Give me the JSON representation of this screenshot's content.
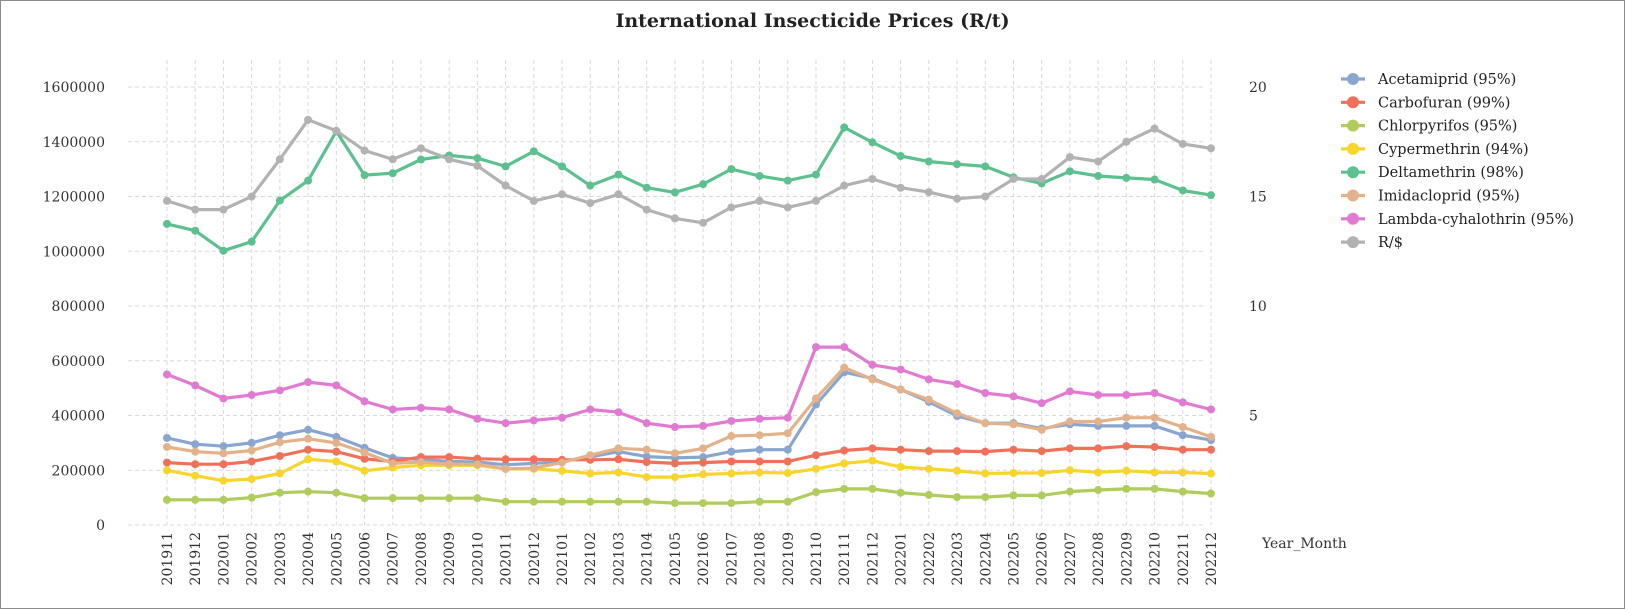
{
  "chart_data": {
    "type": "line",
    "title": "International Insecticide Prices (R/t)",
    "xlabel": "Year_Month",
    "ylabel": "",
    "ylim": [
      0,
      1600000
    ],
    "y2lim": [
      0,
      20
    ],
    "y_ticks": [
      "0",
      "200000",
      "400000",
      "600000",
      "800000",
      "1000000",
      "1200000",
      "1400000",
      "1600000"
    ],
    "y2_ticks": [
      "5",
      "10",
      "15",
      "20"
    ],
    "grid": true,
    "legend_position": "right",
    "categories": [
      "201911",
      "201912",
      "202001",
      "202002",
      "202003",
      "202004",
      "202005",
      "202006",
      "202007",
      "202008",
      "202009",
      "202010",
      "202011",
      "202012",
      "202101",
      "202102",
      "202103",
      "202104",
      "202105",
      "202106",
      "202107",
      "202108",
      "202109",
      "202110",
      "202111",
      "202112",
      "202201",
      "202202",
      "202203",
      "202204",
      "202205",
      "202206",
      "202207",
      "202208",
      "202209",
      "202210",
      "202211",
      "202212"
    ],
    "series": [
      {
        "name": "Acetamiprid (95%)",
        "color": "#8aa6cf",
        "axis": "left",
        "values": [
          318000,
          295000,
          288000,
          300000,
          328000,
          348000,
          322000,
          282000,
          245000,
          240000,
          232000,
          230000,
          220000,
          225000,
          232000,
          248000,
          268000,
          250000,
          245000,
          248000,
          268000,
          275000,
          275000,
          440000,
          558000,
          535000,
          495000,
          450000,
          398000,
          372000,
          372000,
          352000,
          368000,
          362000,
          362000,
          362000,
          328000,
          310000
        ]
      },
      {
        "name": "Carbofuran (99%)",
        "color": "#f0715a",
        "axis": "left",
        "values": [
          228000,
          222000,
          222000,
          232000,
          252000,
          275000,
          268000,
          242000,
          232000,
          248000,
          248000,
          242000,
          240000,
          240000,
          238000,
          238000,
          240000,
          230000,
          225000,
          228000,
          232000,
          232000,
          232000,
          255000,
          272000,
          280000,
          275000,
          270000,
          270000,
          268000,
          275000,
          270000,
          280000,
          280000,
          288000,
          285000,
          275000,
          275000
        ]
      },
      {
        "name": "Chlorpyrifos (95%)",
        "color": "#b0cc5c",
        "axis": "left",
        "values": [
          92000,
          92000,
          92000,
          100000,
          118000,
          122000,
          118000,
          98000,
          98000,
          98000,
          98000,
          98000,
          85000,
          85000,
          85000,
          85000,
          85000,
          85000,
          80000,
          80000,
          80000,
          85000,
          85000,
          120000,
          132000,
          132000,
          118000,
          110000,
          102000,
          102000,
          108000,
          108000,
          122000,
          128000,
          132000,
          132000,
          122000,
          115000
        ]
      },
      {
        "name": "Cypermethrin (94%)",
        "color": "#f8d52c",
        "axis": "left",
        "values": [
          200000,
          180000,
          162000,
          168000,
          188000,
          240000,
          232000,
          198000,
          210000,
          218000,
          218000,
          218000,
          205000,
          205000,
          198000,
          188000,
          192000,
          175000,
          175000,
          185000,
          188000,
          192000,
          190000,
          205000,
          225000,
          235000,
          212000,
          205000,
          198000,
          188000,
          190000,
          190000,
          200000,
          192000,
          198000,
          192000,
          192000,
          188000
        ]
      },
      {
        "name": "Deltamethrin (98%)",
        "color": "#5dc08f",
        "axis": "left",
        "values": [
          1100000,
          1075000,
          1002000,
          1035000,
          1185000,
          1258000,
          1438000,
          1278000,
          1285000,
          1335000,
          1350000,
          1340000,
          1310000,
          1365000,
          1310000,
          1240000,
          1280000,
          1232000,
          1215000,
          1245000,
          1300000,
          1275000,
          1258000,
          1280000,
          1452000,
          1398000,
          1348000,
          1328000,
          1318000,
          1310000,
          1270000,
          1248000,
          1292000,
          1275000,
          1268000,
          1262000,
          1222000,
          1205000
        ]
      },
      {
        "name": "Imidacloprid (95%)",
        "color": "#e3b28b",
        "axis": "left",
        "values": [
          285000,
          268000,
          262000,
          272000,
          302000,
          315000,
          300000,
          265000,
          225000,
          230000,
          222000,
          222000,
          205000,
          208000,
          228000,
          255000,
          280000,
          275000,
          262000,
          280000,
          325000,
          328000,
          335000,
          462000,
          575000,
          532000,
          495000,
          458000,
          408000,
          372000,
          368000,
          348000,
          378000,
          378000,
          392000,
          392000,
          358000,
          322000
        ]
      },
      {
        "name": "Lambda-cyhalothrin (95%)",
        "color": "#e17bd2",
        "axis": "left",
        "values": [
          550000,
          510000,
          462000,
          475000,
          492000,
          522000,
          510000,
          452000,
          422000,
          428000,
          422000,
          388000,
          372000,
          382000,
          392000,
          422000,
          412000,
          372000,
          358000,
          362000,
          380000,
          388000,
          392000,
          650000,
          650000,
          585000,
          568000,
          532000,
          515000,
          482000,
          470000,
          445000,
          488000,
          475000,
          475000,
          482000,
          448000,
          422000
        ]
      },
      {
        "name": "R/$",
        "color": "#b2b2b2",
        "axis": "right",
        "values": [
          14.8,
          14.4,
          14.4,
          15.0,
          16.7,
          18.5,
          18.0,
          17.1,
          16.7,
          17.2,
          16.7,
          16.4,
          15.5,
          14.8,
          15.1,
          14.7,
          15.1,
          14.4,
          14.0,
          13.8,
          14.5,
          14.8,
          14.5,
          14.8,
          15.5,
          15.8,
          15.4,
          15.2,
          14.9,
          15.0,
          15.8,
          15.8,
          16.8,
          16.6,
          17.5,
          18.1,
          17.4,
          17.2
        ]
      }
    ]
  }
}
